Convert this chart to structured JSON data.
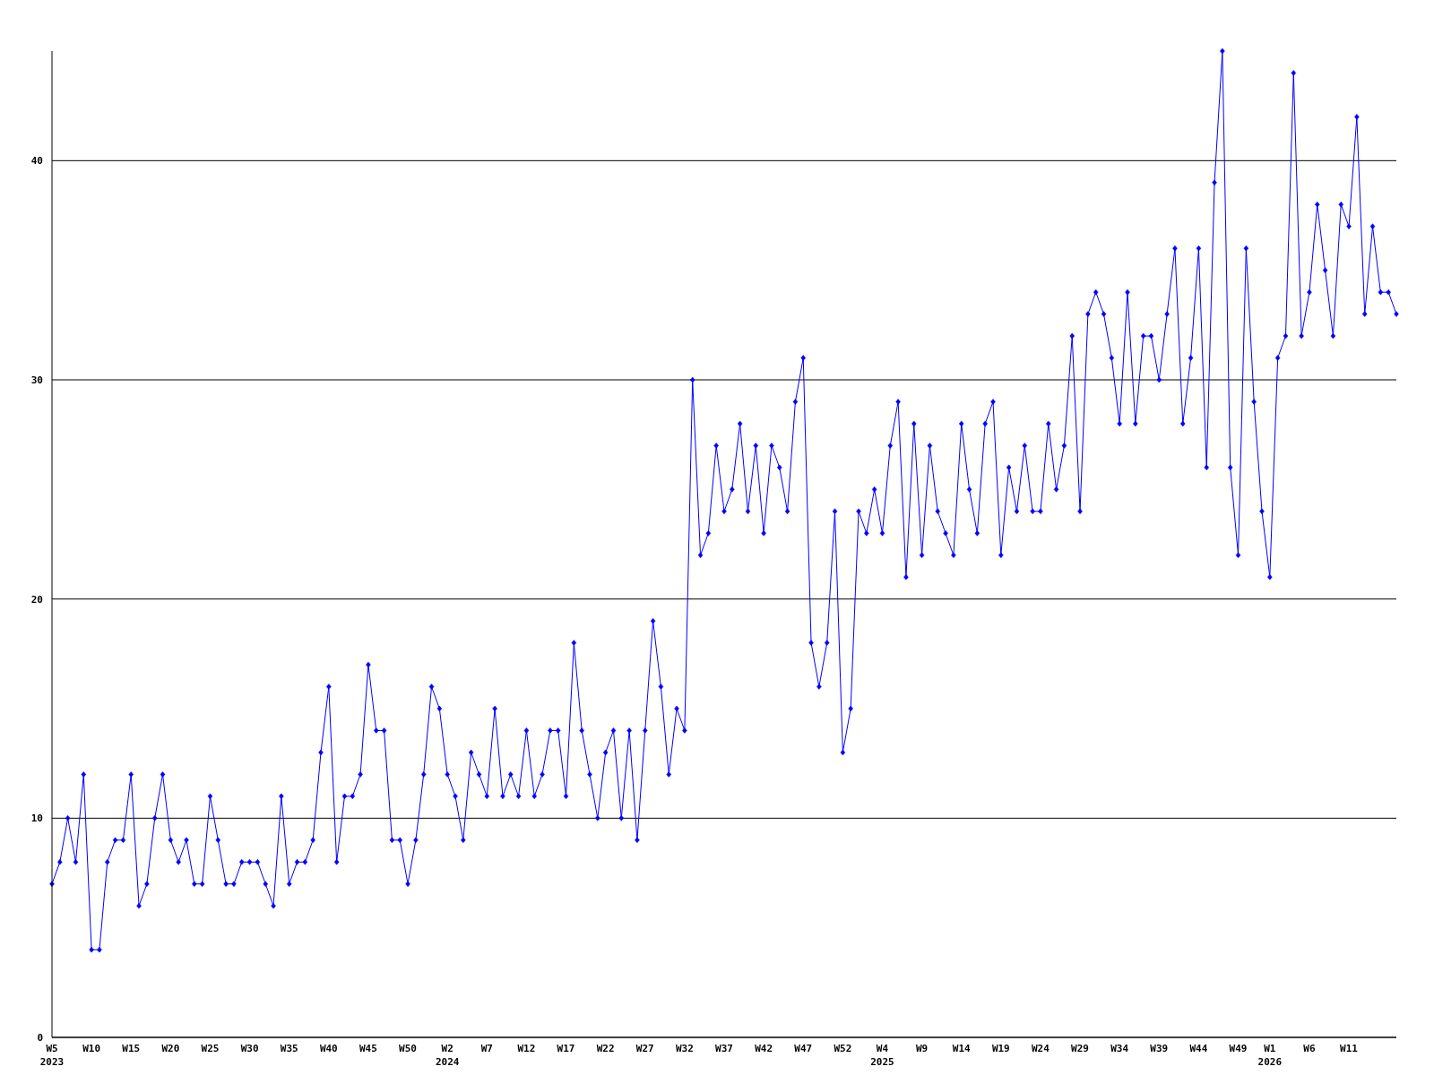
{
  "chart_data": {
    "type": "line",
    "categories": [
      "W5\n2023",
      null,
      null,
      null,
      null,
      "W10",
      null,
      null,
      null,
      null,
      "W15",
      null,
      null,
      null,
      null,
      "W20",
      null,
      null,
      null,
      null,
      "W25",
      null,
      null,
      null,
      null,
      "W30",
      null,
      null,
      null,
      null,
      "W35",
      null,
      null,
      null,
      null,
      "W40",
      null,
      null,
      null,
      null,
      "W45",
      null,
      null,
      null,
      null,
      "W50",
      null,
      null,
      null,
      null,
      "W2\n2024",
      null,
      null,
      null,
      null,
      "W7",
      null,
      null,
      null,
      null,
      "W12",
      null,
      null,
      null,
      null,
      "W17",
      null,
      null,
      null,
      null,
      "W22",
      null,
      null,
      null,
      null,
      "W27",
      null,
      null,
      null,
      null,
      "W32",
      null,
      null,
      null,
      null,
      "W37",
      null,
      null,
      null,
      null,
      "W42",
      null,
      null,
      null,
      null,
      "W47",
      null,
      null,
      null,
      null,
      "W52",
      null,
      null,
      null,
      null,
      "W4\n2025",
      null,
      null,
      null,
      null,
      "W9",
      null,
      null,
      null,
      null,
      "W14",
      null,
      null,
      null,
      null,
      "W19",
      null,
      null,
      null,
      null,
      "W24",
      null,
      null,
      null,
      null,
      "W29",
      null,
      null,
      null,
      null,
      "W34",
      null,
      null,
      null,
      null,
      "W39",
      null,
      null,
      null,
      null,
      "W44",
      null,
      null,
      null,
      null,
      "W49",
      null,
      null,
      null,
      "W1\n2026",
      null,
      null,
      null,
      null,
      "W6",
      null,
      null,
      null,
      null,
      "W11",
      null,
      null,
      null,
      null,
      null,
      null
    ],
    "series": [
      {
        "color": "#0000ff",
        "values": [
          7,
          8,
          10,
          8,
          12,
          4,
          4,
          8,
          9,
          9,
          12,
          6,
          7,
          10,
          12,
          9,
          8,
          9,
          7,
          7,
          11,
          9,
          7,
          7,
          8,
          8,
          8,
          7,
          6,
          11,
          7,
          8,
          8,
          9,
          13,
          16,
          8,
          11,
          11,
          12,
          17,
          14,
          14,
          9,
          9,
          7,
          9,
          12,
          16,
          15,
          12,
          11,
          9,
          13,
          12,
          11,
          15,
          11,
          12,
          11,
          14,
          11,
          12,
          14,
          14,
          11,
          18,
          14,
          12,
          10,
          13,
          14,
          10,
          14,
          9,
          14,
          19,
          16,
          12,
          15,
          14,
          30,
          22,
          23,
          27,
          24,
          25,
          28,
          24,
          27,
          23,
          27,
          26,
          24,
          29,
          31,
          18,
          16,
          18,
          24,
          13,
          15,
          24,
          23,
          25,
          23,
          27,
          29,
          21,
          28,
          22,
          27,
          24,
          23,
          22,
          28,
          25,
          23,
          28,
          29,
          22,
          26,
          24,
          27,
          24,
          24,
          28,
          25,
          27,
          32,
          24,
          33,
          34,
          33,
          31,
          28,
          34,
          28,
          32,
          32,
          30,
          33,
          36,
          28,
          31,
          36,
          26,
          39,
          45,
          26,
          22,
          36,
          29,
          24,
          21,
          31,
          32,
          44,
          32,
          34,
          38,
          35,
          32,
          38,
          37,
          42,
          33,
          37,
          34,
          34,
          33
        ]
      }
    ],
    "ylim": [
      0,
      45
    ],
    "yticks": [
      0,
      10,
      20,
      30,
      40
    ],
    "grid": "y",
    "marker": "diamond",
    "line_style": "solid"
  }
}
